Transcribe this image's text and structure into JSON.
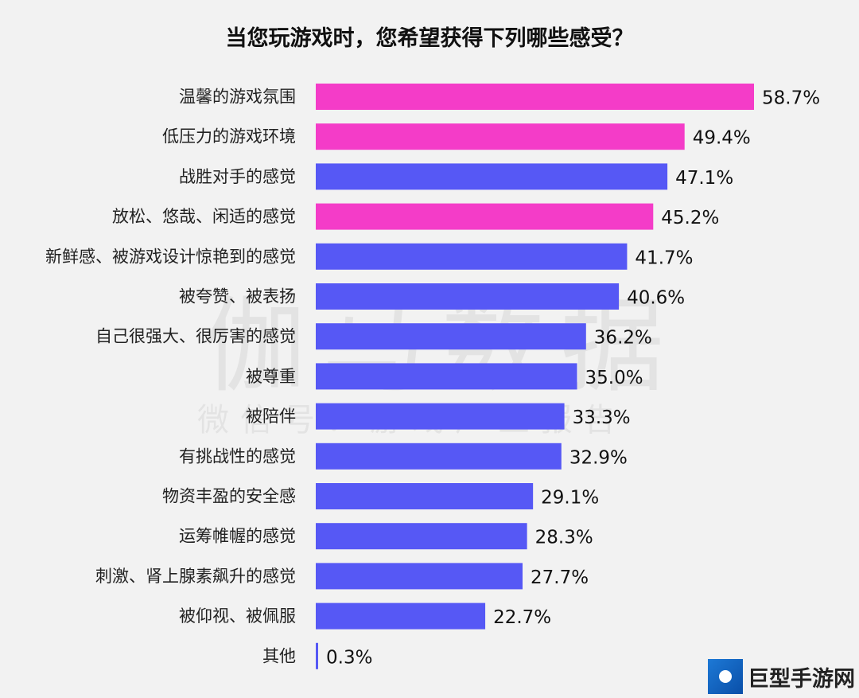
{
  "watermark": {
    "main": "伽马数据",
    "sub": "微信号：游戏产业报告"
  },
  "logo": {
    "text": "巨型手游网"
  },
  "colors": {
    "highlight": "#f43cc8",
    "normal": "#5658f5"
  },
  "chart_data": {
    "type": "bar",
    "orientation": "horizontal",
    "title": "当您玩游戏时，您希望获得下列哪些感受？",
    "xlabel": "",
    "ylabel": "",
    "xlim": [
      0,
      60
    ],
    "grid": false,
    "categories": [
      "温馨的游戏氛围",
      "低压力的游戏环境",
      "战胜对手的感觉",
      "放松、悠哉、闲适的感觉",
      "新鲜感、被游戏设计惊艳到的感觉",
      "被夸赞、被表扬",
      "自己很强大、很厉害的感觉",
      "被尊重",
      "被陪伴",
      "有挑战性的感觉",
      "物资丰盈的安全感",
      "运筹帷幄的感觉",
      "刺激、肾上腺素飙升的感觉",
      "被仰视、被佩服",
      "其他"
    ],
    "values": [
      58.7,
      49.4,
      47.1,
      45.2,
      41.7,
      40.6,
      36.2,
      35.0,
      33.3,
      32.9,
      29.1,
      28.3,
      27.7,
      22.7,
      0.3
    ],
    "labels": [
      "58.7%",
      "49.4%",
      "47.1%",
      "45.2%",
      "41.7%",
      "40.6%",
      "36.2%",
      "35.0%",
      "33.3%",
      "32.9%",
      "29.1%",
      "28.3%",
      "27.7%",
      "22.7%",
      "0.3%"
    ],
    "highlight": [
      true,
      true,
      false,
      true,
      false,
      false,
      false,
      false,
      false,
      false,
      false,
      false,
      false,
      false,
      false
    ]
  }
}
